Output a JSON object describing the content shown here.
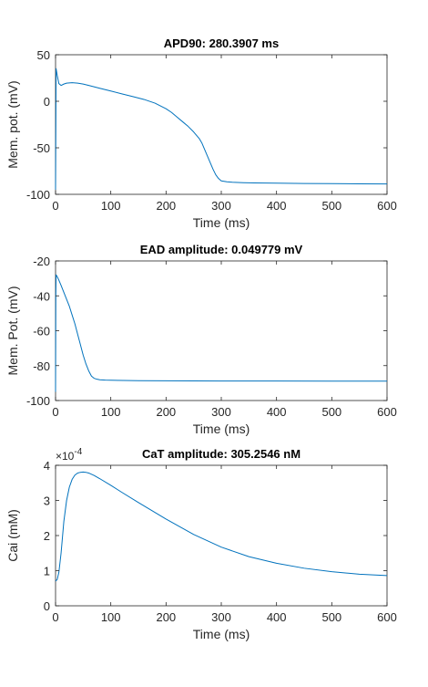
{
  "chart_data": [
    {
      "type": "line",
      "title": "APD90: 280.3907 ms",
      "xlabel": "Time (ms)",
      "ylabel": "Mem. pot. (mV)",
      "xlim": [
        0,
        600
      ],
      "ylim": [
        -100,
        50
      ],
      "xticks": [
        0,
        100,
        200,
        300,
        400,
        500,
        600
      ],
      "yticks": [
        -100,
        -50,
        0,
        50
      ],
      "grid": false,
      "line_color": "#0072BD",
      "series": [
        {
          "x": [
            0,
            1,
            3,
            6,
            10,
            15,
            20,
            30,
            40,
            50,
            60,
            80,
            100,
            120,
            140,
            160,
            180,
            200,
            210,
            220,
            230,
            240,
            250,
            260,
            265,
            270,
            275,
            280,
            285,
            290,
            295,
            300,
            310,
            320,
            340,
            360,
            400,
            450,
            500,
            550,
            600
          ],
          "y": [
            -95,
            35,
            28,
            19,
            17,
            18.5,
            19.5,
            20,
            19.5,
            18.5,
            17,
            14,
            11,
            8,
            5,
            2,
            -2,
            -8,
            -12,
            -17,
            -22,
            -27,
            -33,
            -40,
            -45,
            -52,
            -59,
            -66,
            -73,
            -79,
            -83,
            -85.5,
            -86.5,
            -87,
            -87.5,
            -87.8,
            -88,
            -88.3,
            -88.5,
            -88.7,
            -88.8
          ]
        }
      ]
    },
    {
      "type": "line",
      "title": "EAD amplitude: 0.049779 mV",
      "xlabel": "Time (ms)",
      "ylabel": "Mem. Pot. (mV)",
      "xlim": [
        0,
        600
      ],
      "ylim": [
        -100,
        -20
      ],
      "xticks": [
        0,
        100,
        200,
        300,
        400,
        500,
        600
      ],
      "yticks": [
        -100,
        -80,
        -60,
        -40,
        -20
      ],
      "grid": false,
      "line_color": "#0072BD",
      "series": [
        {
          "x": [
            0,
            0.5,
            1,
            3,
            6,
            10,
            15,
            20,
            25,
            30,
            35,
            40,
            45,
            50,
            55,
            60,
            65,
            70,
            75,
            80,
            90,
            100,
            150,
            200,
            300,
            400,
            500,
            600
          ],
          "y": [
            -95,
            -40,
            -28,
            -29,
            -31,
            -34,
            -38,
            -42,
            -46,
            -51,
            -56,
            -62,
            -68,
            -74,
            -79,
            -83,
            -86,
            -87.3,
            -87.8,
            -88.1,
            -88.3,
            -88.4,
            -88.6,
            -88.7,
            -88.8,
            -88.85,
            -88.9,
            -88.9
          ]
        }
      ]
    },
    {
      "type": "line",
      "title": "CaT amplitude: 305.2546 nM",
      "xlabel": "Time (ms)",
      "ylabel": "Cai (mM)",
      "xlim": [
        0,
        600
      ],
      "ylim": [
        0,
        0.0004
      ],
      "xticks": [
        0,
        100,
        200,
        300,
        400,
        500,
        600
      ],
      "ytick_labels": [
        "0",
        "1",
        "2",
        "3",
        "4"
      ],
      "y_exponent_base": "×10",
      "y_exponent": "-4",
      "grid": false,
      "line_color": "#0072BD",
      "series": [
        {
          "x": [
            0,
            3,
            6,
            10,
            15,
            20,
            25,
            30,
            35,
            40,
            45,
            50,
            55,
            60,
            70,
            80,
            100,
            120,
            150,
            200,
            250,
            300,
            350,
            400,
            450,
            500,
            550,
            600
          ],
          "y": [
            7e-05,
            7.5e-05,
            9.5e-05,
            0.00015,
            0.00024,
            0.0003,
            0.000338,
            0.00036,
            0.000372,
            0.000378,
            0.00038,
            0.000381,
            0.00038,
            0.000378,
            0.000371,
            0.000362,
            0.000343,
            0.000323,
            0.000294,
            0.000247,
            0.000203,
            0.000167,
            0.00014,
            0.000121,
            0.000107,
            9.7e-05,
            9e-05,
            8.6e-05
          ]
        }
      ]
    }
  ]
}
